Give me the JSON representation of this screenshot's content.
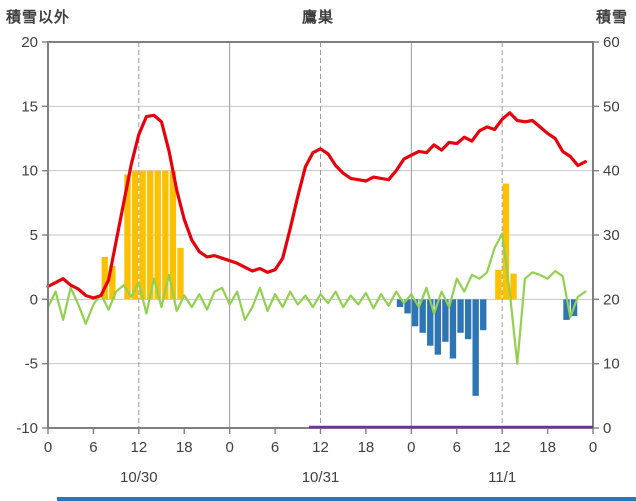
{
  "header": {
    "left_axis_title": "積雪以外",
    "station_name": "鷹巣",
    "right_axis_title": "積雪"
  },
  "colors": {
    "background": "#ffffff",
    "label_text": "#404040",
    "axis": "#7f7f7f",
    "grid_h": "#c6c6c6",
    "grid_v": "#9a9a9a",
    "red_line": "#e8000d",
    "green_line": "#92d050",
    "orange_bars": "#ffc000",
    "blue_bars": "#2e75b6",
    "purple_line": "#7030a0",
    "bottom_strip": "#2e75b6"
  },
  "chart_data": {
    "type": "line",
    "title": "鷹巣",
    "grid": true,
    "left_axis": {
      "label": "積雪以外",
      "min": -10,
      "max": 20,
      "tick_values": [
        20,
        15,
        10,
        5,
        0,
        -5,
        -10
      ],
      "tick_labels": [
        "20",
        "15",
        "10",
        "5",
        "0",
        "-5",
        "-10"
      ]
    },
    "right_axis": {
      "label": "積雪",
      "min": 0,
      "max": 60,
      "tick_values": [
        60,
        50,
        40,
        30,
        20,
        10,
        0
      ],
      "tick_labels": [
        "60",
        "50",
        "40",
        "30",
        "20",
        "10",
        "0"
      ]
    },
    "x_axis": {
      "unit": "hour",
      "total_hours": 72,
      "tick_hours": [
        0,
        6,
        12,
        18,
        24,
        30,
        36,
        42,
        48,
        54,
        60,
        66,
        72
      ],
      "tick_labels": [
        "0",
        "6",
        "12",
        "18",
        "0",
        "6",
        "12",
        "18",
        "0",
        "6",
        "12",
        "18",
        "0"
      ],
      "solid_grid_hours": [
        24,
        48
      ],
      "dashed_grid_hours": [
        12,
        36,
        60
      ],
      "date_labels": [
        {
          "text": "10/30",
          "hour": 12
        },
        {
          "text": "10/31",
          "hour": 36
        },
        {
          "text": "11/1",
          "hour": 60
        }
      ]
    },
    "series": [
      {
        "name": "orange-bars",
        "type": "bar",
        "axis": "left",
        "color": "#ffc000",
        "points": [
          {
            "hour": 7,
            "value": 3.3
          },
          {
            "hour": 8,
            "value": 2.6
          },
          {
            "hour": 10,
            "value": 9.7
          },
          {
            "hour": 11,
            "value": 10
          },
          {
            "hour": 12,
            "value": 10
          },
          {
            "hour": 13,
            "value": 10
          },
          {
            "hour": 14,
            "value": 10
          },
          {
            "hour": 15,
            "value": 10
          },
          {
            "hour": 16,
            "value": 10
          },
          {
            "hour": 17,
            "value": 4
          },
          {
            "hour": 59,
            "value": 2.3
          },
          {
            "hour": 60,
            "value": 9
          },
          {
            "hour": 61,
            "value": 2
          }
        ]
      },
      {
        "name": "blue-bars",
        "type": "bar",
        "axis": "left",
        "color": "#2e75b6",
        "points": [
          {
            "hour": 46,
            "value": -0.6
          },
          {
            "hour": 47,
            "value": -1.1
          },
          {
            "hour": 48,
            "value": -2.1
          },
          {
            "hour": 49,
            "value": -2.6
          },
          {
            "hour": 50,
            "value": -3.6
          },
          {
            "hour": 51,
            "value": -4.3
          },
          {
            "hour": 52,
            "value": -3.3
          },
          {
            "hour": 53,
            "value": -4.6
          },
          {
            "hour": 54,
            "value": -2.6
          },
          {
            "hour": 55,
            "value": -3.1
          },
          {
            "hour": 56,
            "value": -7.5
          },
          {
            "hour": 57,
            "value": -2.4
          },
          {
            "hour": 68,
            "value": -1.6
          },
          {
            "hour": 69,
            "value": -1.3
          }
        ]
      },
      {
        "name": "green-line",
        "type": "line",
        "axis": "left",
        "color": "#92d050",
        "width": 2.2,
        "values": [
          -0.6,
          0.6,
          -1.6,
          0.9,
          -0.4,
          -1.9,
          -0.4,
          0.4,
          -0.8,
          0.6,
          1.1,
          0.2,
          1.3,
          -1.1,
          1.6,
          -0.6,
          1.9,
          -0.9,
          0.3,
          -0.6,
          0.4,
          -0.8,
          0.6,
          0.9,
          -0.4,
          0.6,
          -1.6,
          -0.6,
          0.9,
          -0.9,
          0.4,
          -0.6,
          0.6,
          -0.4,
          0.3,
          -0.6,
          0.4,
          -0.3,
          0.6,
          -0.6,
          0.3,
          -0.4,
          0.5,
          -0.7,
          0.4,
          -0.5,
          0.6,
          -0.3,
          0.4,
          -0.6,
          0.9,
          -1.1,
          0.6,
          -0.6,
          1.6,
          0.6,
          1.9,
          1.6,
          2.1,
          4.0,
          5.1,
          0.6,
          -5.0,
          1.6,
          2.1,
          1.9,
          1.6,
          2.2,
          1.8,
          -1.4,
          0.2,
          0.6
        ]
      },
      {
        "name": "red-line",
        "type": "line",
        "axis": "left",
        "color": "#e8000d",
        "width": 3.2,
        "values": [
          1.0,
          1.3,
          1.6,
          1.1,
          0.8,
          0.3,
          0.1,
          0.3,
          1.5,
          4.5,
          7.5,
          10.5,
          12.8,
          14.2,
          14.3,
          13.8,
          11.5,
          8.5,
          6.2,
          4.6,
          3.7,
          3.3,
          3.4,
          3.2,
          3.0,
          2.8,
          2.5,
          2.2,
          2.4,
          2.1,
          2.3,
          3.2,
          5.5,
          8.0,
          10.3,
          11.4,
          11.7,
          11.3,
          10.4,
          9.8,
          9.4,
          9.3,
          9.2,
          9.5,
          9.4,
          9.3,
          10.0,
          10.9,
          11.2,
          11.5,
          11.4,
          12.0,
          11.6,
          12.2,
          12.1,
          12.6,
          12.3,
          13.1,
          13.4,
          13.2,
          14.0,
          14.5,
          13.9,
          13.8,
          13.9,
          13.4,
          12.9,
          12.5,
          11.5,
          11.1,
          10.4,
          10.7
        ]
      },
      {
        "name": "purple-snow-line",
        "type": "flatline",
        "axis": "right",
        "color": "#7030a0",
        "start_hour": 34.5,
        "end_hour": 72,
        "value": 0
      }
    ]
  }
}
